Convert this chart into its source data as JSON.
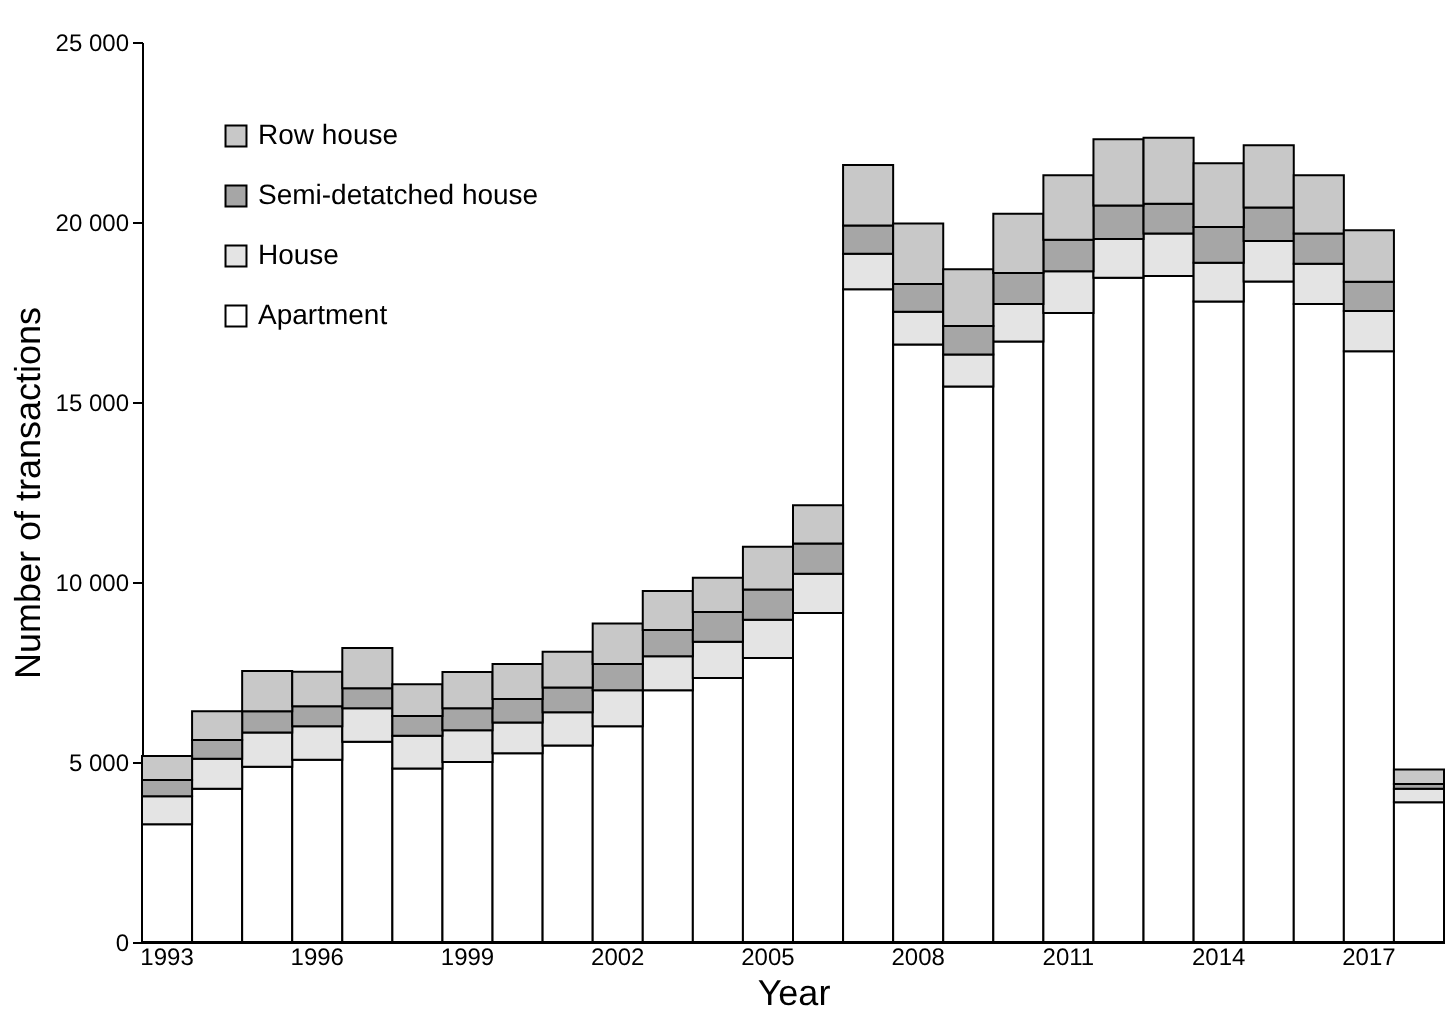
{
  "chart_data": {
    "type": "bar",
    "stacked": true,
    "xlabel": "Year",
    "ylabel": "Number of transactions",
    "categories": [
      "1993",
      null,
      null,
      "1996",
      null,
      null,
      "1999",
      null,
      null,
      "2002",
      null,
      null,
      "2005",
      null,
      null,
      "2008",
      null,
      null,
      "2011",
      null,
      null,
      "2014",
      null,
      null,
      "2017",
      null
    ],
    "series": [
      {
        "name": "Apartment",
        "color": "#ffffff",
        "values": [
          3270,
          4260,
          4870,
          5060,
          5560,
          4820,
          5000,
          5240,
          5460,
          5990,
          6990,
          7330,
          7890,
          9140,
          18130,
          16600,
          15430,
          16680,
          17470,
          18450,
          18500,
          17790,
          18350,
          17720,
          16410,
          3880
        ]
      },
      {
        "name": "House",
        "color": "#e4e4e4",
        "values": [
          780,
          830,
          950,
          930,
          930,
          910,
          880,
          860,
          920,
          1000,
          950,
          1010,
          1060,
          1090,
          990,
          910,
          890,
          1040,
          1160,
          1080,
          1180,
          1080,
          1120,
          1120,
          1120,
          380
        ]
      },
      {
        "name": "Semi-detatched house",
        "color": "#a6a6a6",
        "values": [
          450,
          520,
          590,
          560,
          560,
          550,
          610,
          650,
          690,
          730,
          730,
          830,
          840,
          840,
          780,
          770,
          790,
          860,
          880,
          930,
          830,
          990,
          930,
          840,
          810,
          130
        ]
      },
      {
        "name": "Row house",
        "color": "#c8c8c8",
        "values": [
          670,
          800,
          1120,
          960,
          1120,
          880,
          1010,
          970,
          990,
          1130,
          1080,
          950,
          1190,
          1060,
          1680,
          1680,
          1580,
          1650,
          1790,
          1840,
          1830,
          1770,
          1730,
          1620,
          1430,
          400
        ]
      }
    ],
    "ylim": [
      0,
      25000
    ],
    "yticks": [
      0,
      {
        "value": 5000,
        "label": "5 000"
      },
      {
        "value": 10000,
        "label": "10 000"
      },
      {
        "value": 15000,
        "label": "15 000"
      },
      {
        "value": 20000,
        "label": "20 000"
      },
      {
        "value": 25000,
        "label": "25 000"
      }
    ],
    "legend": "top left",
    "grid": false
  }
}
